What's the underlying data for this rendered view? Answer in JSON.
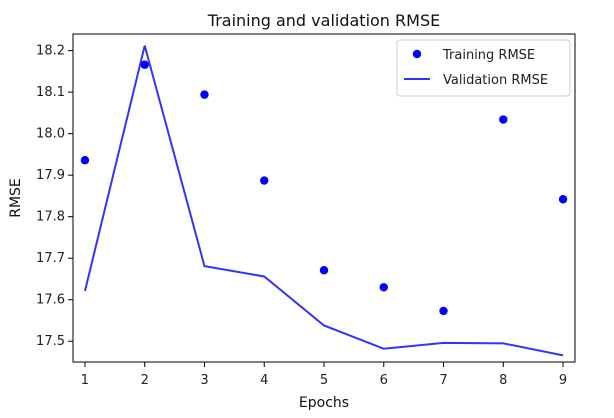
{
  "chart_data": {
    "type": "line",
    "title": "Training and validation RMSE",
    "xlabel": "Epochs",
    "ylabel": "RMSE",
    "x": [
      1,
      2,
      3,
      4,
      5,
      6,
      7,
      8,
      9
    ],
    "xlim": [
      0.8,
      9.2
    ],
    "ylim": [
      17.45,
      18.24
    ],
    "xticks": [
      1,
      2,
      3,
      4,
      5,
      6,
      7,
      8,
      9
    ],
    "yticks": [
      17.5,
      17.6,
      17.7,
      17.8,
      17.9,
      18.0,
      18.1,
      18.2
    ],
    "ytick_labels": [
      "17.5",
      "17.6",
      "17.7",
      "17.8",
      "17.9",
      "18.0",
      "18.1",
      "18.2"
    ],
    "grid": false,
    "legend_position": "top-right",
    "series": [
      {
        "name": "Training RMSE",
        "type": "scatter",
        "color": "#0000ff",
        "values": [
          17.936,
          18.166,
          18.094,
          17.887,
          17.671,
          17.63,
          17.573,
          18.034,
          17.842
        ]
      },
      {
        "name": "Validation RMSE",
        "type": "line",
        "color": "#3333ff",
        "values": [
          17.621,
          18.212,
          17.681,
          17.656,
          17.538,
          17.482,
          17.496,
          17.495,
          17.466
        ]
      }
    ]
  }
}
